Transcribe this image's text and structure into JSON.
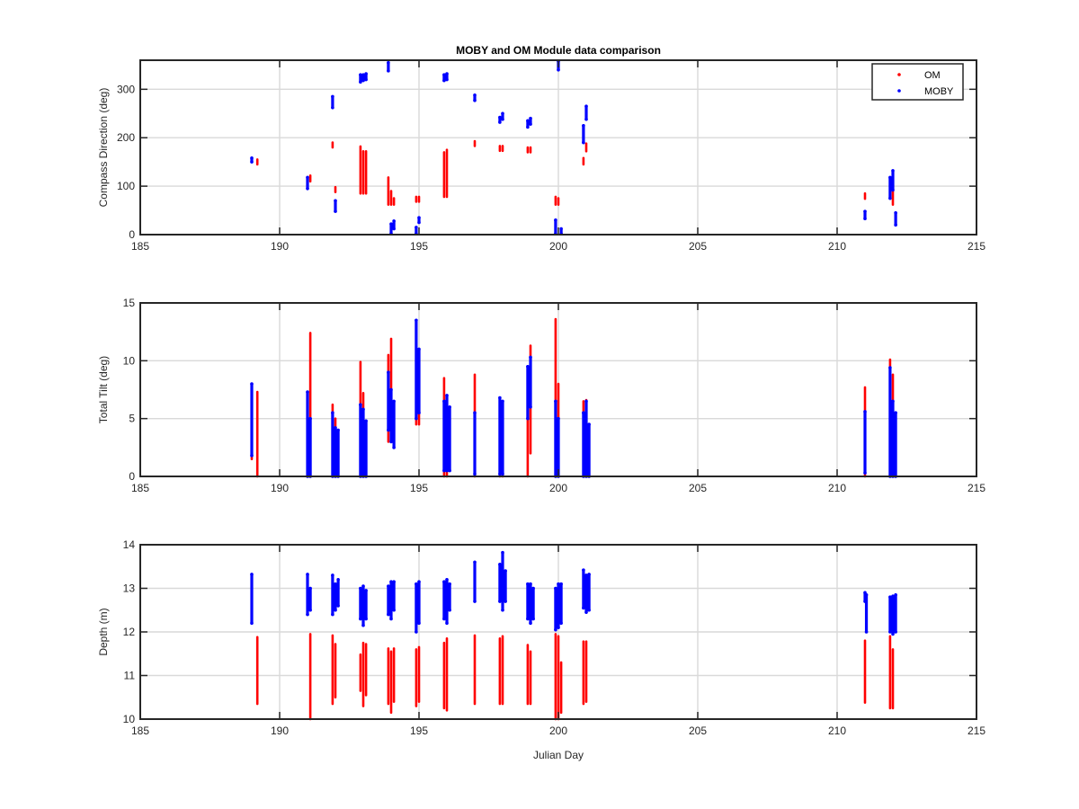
{
  "figure": {
    "title": "MOBY and OM Module data comparison",
    "background": "#ffffff"
  },
  "colors": {
    "om": "#ff0000",
    "moby": "#0000ff",
    "grid": "#d9d9d9",
    "axis": "#262626"
  },
  "legend": {
    "placement": "top-right",
    "entries": [
      "OM",
      "MOBY"
    ]
  },
  "chart_data": [
    {
      "type": "scatter",
      "title": "MOBY and OM Module data comparison",
      "xlabel": "",
      "ylabel": "Compass Direction (deg)",
      "xlim": [
        185,
        215
      ],
      "ylim": [
        0,
        360
      ],
      "xticks": [
        185,
        190,
        195,
        200,
        205,
        210,
        215
      ],
      "yticks": [
        0,
        100,
        200,
        300
      ],
      "grid": true,
      "series": [
        {
          "name": "OM",
          "segments": [
            [
              189.2,
              145,
              155
            ],
            [
              191.1,
              110,
              122
            ],
            [
              191.9,
              180,
              190
            ],
            [
              192.0,
              88,
              98
            ],
            [
              192.9,
              85,
              182
            ],
            [
              193.0,
              85,
              172
            ],
            [
              193.1,
              85,
              172
            ],
            [
              193.9,
              62,
              118
            ],
            [
              194.0,
              62,
              90
            ],
            [
              194.1,
              62,
              75
            ],
            [
              194.9,
              68,
              78
            ],
            [
              195.0,
              68,
              78
            ],
            [
              195.9,
              78,
              170
            ],
            [
              196.0,
              78,
              175
            ],
            [
              197.0,
              183,
              193
            ],
            [
              197.9,
              173,
              183
            ],
            [
              198.0,
              173,
              183
            ],
            [
              198.9,
              170,
              180
            ],
            [
              199.0,
              170,
              180
            ],
            [
              199.9,
              62,
              78
            ],
            [
              200.0,
              62,
              75
            ],
            [
              200.9,
              145,
              158
            ],
            [
              201.0,
              172,
              188
            ],
            [
              211.0,
              74,
              85
            ],
            [
              211.9,
              88,
              104
            ],
            [
              212.0,
              62,
              100
            ]
          ]
        },
        {
          "name": "MOBY",
          "segments": [
            [
              189.0,
              150,
              158
            ],
            [
              191.0,
              95,
              118
            ],
            [
              191.9,
              262,
              285
            ],
            [
              192.0,
              48,
              70
            ],
            [
              192.9,
              315,
              330
            ],
            [
              193.0,
              318,
              330
            ],
            [
              193.1,
              320,
              332
            ],
            [
              193.9,
              338,
              355
            ],
            [
              194.0,
              2,
              22
            ],
            [
              194.1,
              12,
              28
            ],
            [
              194.9,
              2,
              15
            ],
            [
              195.0,
              25,
              35
            ],
            [
              195.9,
              318,
              330
            ],
            [
              196.0,
              320,
              332
            ],
            [
              197.0,
              277,
              288
            ],
            [
              197.9,
              232,
              242
            ],
            [
              198.0,
              238,
              250
            ],
            [
              198.9,
              222,
              235
            ],
            [
              199.0,
              228,
              240
            ],
            [
              199.9,
              2,
              30
            ],
            [
              200.0,
              340,
              358
            ],
            [
              200.1,
              2,
              12
            ],
            [
              200.9,
              190,
              225
            ],
            [
              201.0,
              238,
              265
            ],
            [
              211.0,
              33,
              48
            ],
            [
              211.9,
              75,
              118
            ],
            [
              212.0,
              92,
              132
            ],
            [
              212.1,
              20,
              45
            ]
          ]
        }
      ]
    },
    {
      "type": "scatter",
      "title": "",
      "xlabel": "",
      "ylabel": "Total Tilt (deg)",
      "xlim": [
        185,
        215
      ],
      "ylim": [
        0,
        15
      ],
      "xticks": [
        185,
        190,
        195,
        200,
        205,
        210,
        215
      ],
      "yticks": [
        0,
        5,
        10,
        15
      ],
      "grid": true,
      "series": [
        {
          "name": "OM",
          "segments": [
            [
              189.0,
              1.5,
              5.5
            ],
            [
              189.2,
              0.0,
              7.3
            ],
            [
              191.0,
              0.0,
              4.0
            ],
            [
              191.1,
              0.0,
              12.4
            ],
            [
              191.9,
              0.0,
              6.2
            ],
            [
              192.0,
              0.0,
              5.0
            ],
            [
              192.9,
              0.0,
              9.9
            ],
            [
              193.0,
              0.0,
              7.2
            ],
            [
              193.9,
              3.0,
              10.5
            ],
            [
              194.0,
              3.5,
              11.9
            ],
            [
              194.9,
              4.5,
              9.0
            ],
            [
              195.0,
              4.5,
              8.0
            ],
            [
              195.9,
              0.0,
              8.5
            ],
            [
              196.0,
              0.0,
              7.0
            ],
            [
              197.0,
              0.0,
              8.8
            ],
            [
              197.9,
              0.0,
              6.6
            ],
            [
              198.0,
              0.0,
              5.2
            ],
            [
              198.9,
              0.0,
              6.2
            ],
            [
              199.0,
              2.0,
              11.3
            ],
            [
              199.9,
              0.0,
              13.6
            ],
            [
              200.0,
              0.0,
              8.0
            ],
            [
              200.9,
              0.0,
              6.5
            ],
            [
              201.0,
              0.0,
              6.6
            ],
            [
              211.0,
              0.0,
              7.7
            ],
            [
              211.9,
              0.0,
              10.1
            ],
            [
              212.0,
              0.0,
              8.8
            ]
          ]
        },
        {
          "name": "MOBY",
          "segments": [
            [
              189.0,
              1.8,
              8.0
            ],
            [
              191.0,
              0.0,
              7.3
            ],
            [
              191.1,
              0.0,
              5.0
            ],
            [
              191.9,
              0.0,
              5.5
            ],
            [
              192.0,
              0.0,
              4.2
            ],
            [
              192.1,
              0.0,
              4.0
            ],
            [
              192.9,
              0.0,
              6.2
            ],
            [
              193.0,
              0.0,
              5.8
            ],
            [
              193.1,
              0.0,
              4.8
            ],
            [
              193.9,
              4.0,
              9.0
            ],
            [
              194.0,
              3.0,
              7.5
            ],
            [
              194.1,
              2.5,
              6.5
            ],
            [
              194.9,
              5.0,
              13.5
            ],
            [
              195.0,
              5.5,
              11.0
            ],
            [
              195.9,
              0.5,
              6.5
            ],
            [
              196.0,
              0.5,
              7.0
            ],
            [
              196.1,
              0.5,
              6.0
            ],
            [
              197.0,
              0.2,
              5.5
            ],
            [
              197.9,
              0.2,
              6.8
            ],
            [
              198.0,
              0.2,
              6.5
            ],
            [
              198.9,
              5.0,
              9.5
            ],
            [
              199.0,
              6.0,
              10.3
            ],
            [
              199.9,
              0.0,
              6.5
            ],
            [
              200.0,
              0.0,
              5.0
            ],
            [
              200.9,
              0.0,
              5.5
            ],
            [
              201.0,
              0.0,
              6.5
            ],
            [
              201.1,
              0.0,
              4.5
            ],
            [
              211.0,
              0.3,
              5.6
            ],
            [
              211.9,
              0.0,
              9.4
            ],
            [
              212.0,
              0.0,
              6.5
            ],
            [
              212.1,
              0.0,
              5.5
            ]
          ]
        }
      ]
    },
    {
      "type": "scatter",
      "title": "",
      "xlabel": "Julian Day",
      "ylabel": "Depth (m)",
      "xlim": [
        185,
        215
      ],
      "ylim": [
        10,
        14
      ],
      "xticks": [
        185,
        190,
        195,
        200,
        205,
        210,
        215
      ],
      "yticks": [
        10,
        11,
        12,
        13,
        14
      ],
      "grid": true,
      "series": [
        {
          "name": "OM",
          "segments": [
            [
              189.2,
              10.35,
              11.88
            ],
            [
              191.1,
              10.0,
              11.95
            ],
            [
              191.9,
              10.35,
              11.92
            ],
            [
              192.0,
              10.5,
              11.72
            ],
            [
              192.9,
              10.65,
              11.48
            ],
            [
              193.0,
              10.3,
              11.75
            ],
            [
              193.1,
              10.55,
              11.72
            ],
            [
              193.9,
              10.35,
              11.62
            ],
            [
              194.0,
              10.15,
              11.55
            ],
            [
              194.1,
              10.4,
              11.62
            ],
            [
              194.9,
              10.3,
              11.6
            ],
            [
              195.0,
              10.4,
              11.65
            ],
            [
              195.9,
              10.25,
              11.75
            ],
            [
              196.0,
              10.2,
              11.85
            ],
            [
              197.0,
              10.35,
              11.92
            ],
            [
              197.9,
              10.35,
              11.85
            ],
            [
              198.0,
              10.35,
              11.9
            ],
            [
              198.9,
              10.35,
              11.7
            ],
            [
              199.0,
              10.35,
              11.55
            ],
            [
              199.9,
              10.0,
              11.95
            ],
            [
              200.0,
              10.0,
              11.9
            ],
            [
              200.1,
              10.15,
              11.3
            ],
            [
              200.9,
              10.35,
              11.78
            ],
            [
              201.0,
              10.4,
              11.78
            ],
            [
              211.0,
              10.38,
              11.8
            ],
            [
              211.9,
              10.25,
              11.9
            ],
            [
              212.0,
              10.25,
              11.6
            ]
          ]
        },
        {
          "name": "MOBY",
          "segments": [
            [
              189.0,
              12.2,
              13.32
            ],
            [
              191.0,
              12.4,
              13.32
            ],
            [
              191.1,
              12.5,
              13.0
            ],
            [
              191.9,
              12.4,
              13.3
            ],
            [
              192.0,
              12.5,
              13.1
            ],
            [
              192.1,
              12.6,
              13.2
            ],
            [
              192.9,
              12.3,
              13.0
            ],
            [
              193.0,
              12.15,
              13.05
            ],
            [
              193.1,
              12.3,
              12.95
            ],
            [
              193.9,
              12.4,
              13.05
            ],
            [
              194.0,
              12.3,
              13.15
            ],
            [
              194.1,
              12.5,
              13.15
            ],
            [
              194.9,
              12.0,
              13.1
            ],
            [
              195.0,
              12.2,
              13.15
            ],
            [
              195.9,
              12.3,
              13.15
            ],
            [
              196.0,
              12.2,
              13.2
            ],
            [
              196.1,
              12.5,
              13.1
            ],
            [
              197.0,
              12.7,
              13.6
            ],
            [
              197.9,
              12.7,
              13.55
            ],
            [
              198.0,
              12.5,
              13.82
            ],
            [
              198.1,
              12.7,
              13.4
            ],
            [
              198.9,
              12.3,
              13.1
            ],
            [
              199.0,
              12.2,
              13.1
            ],
            [
              199.1,
              12.3,
              13.0
            ],
            [
              199.9,
              12.05,
              13.0
            ],
            [
              200.0,
              12.1,
              13.1
            ],
            [
              200.1,
              12.2,
              13.1
            ],
            [
              200.9,
              12.55,
              13.42
            ],
            [
              201.0,
              12.45,
              13.3
            ],
            [
              201.1,
              12.5,
              13.32
            ],
            [
              211.0,
              12.7,
              12.9
            ],
            [
              211.05,
              12.0,
              12.85
            ],
            [
              211.9,
              12.0,
              12.8
            ],
            [
              212.0,
              11.95,
              12.82
            ],
            [
              212.1,
              12.0,
              12.85
            ]
          ]
        }
      ]
    }
  ]
}
